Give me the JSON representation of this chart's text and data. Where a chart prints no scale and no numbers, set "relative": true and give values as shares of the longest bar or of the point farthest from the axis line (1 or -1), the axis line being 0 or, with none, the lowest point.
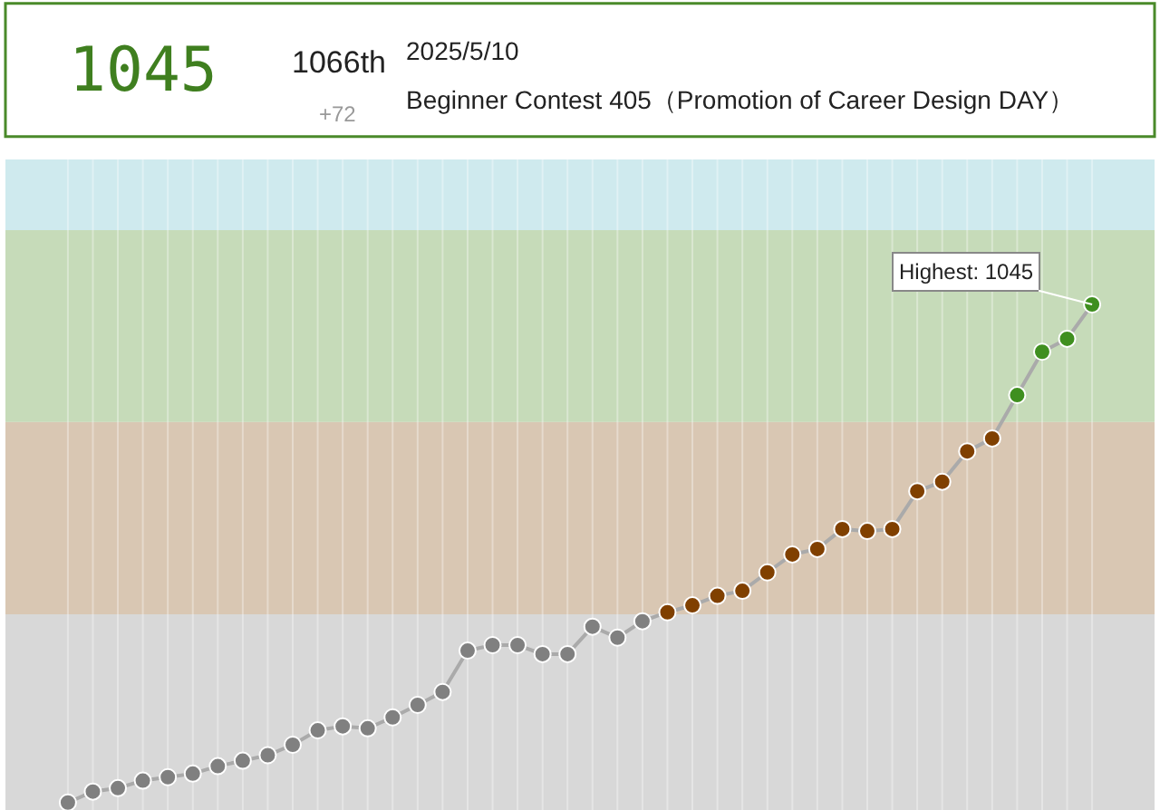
{
  "chart_data": {
    "type": "line",
    "title": "1045",
    "relative": true,
    "annotations": [
      "1066th",
      "+72",
      "2025/5/10",
      "Beginner Contest 405（Promotion of Career Design DAY）",
      "Highest: 1045"
    ],
    "categories": [
      null,
      null,
      null,
      null,
      null,
      null,
      null,
      null,
      null,
      null,
      null,
      null,
      null,
      null,
      null,
      null,
      null,
      null,
      null,
      null,
      null,
      null,
      null,
      null,
      null,
      null,
      null,
      null,
      null,
      null,
      null,
      null,
      null,
      null,
      null,
      null,
      null,
      null,
      null,
      null,
      null,
      null
    ],
    "series": [
      {
        "color": "#aaaaaa",
        "values": [
          0,
          0.022,
          0.029,
          0.044,
          0.051,
          0.058,
          0.073,
          0.084,
          0.095,
          0.116,
          0.145,
          0.153,
          0.149,
          0.171,
          0.196,
          0.222,
          0.305,
          0.316,
          0.316,
          0.298,
          0.298,
          0.353,
          0.331,
          0.364,
          0.382,
          0.396,
          0.415,
          0.425,
          0.462,
          0.498,
          0.509,
          0.549,
          0.545,
          0.549,
          0.625,
          0.644,
          0.705,
          0.731,
          0.818,
          0.905,
          0.931,
          1
        ],
        "colors": [
          "#808080",
          "#808080",
          "#808080",
          "#808080",
          "#808080",
          "#808080",
          "#808080",
          "#808080",
          "#808080",
          "#808080",
          "#808080",
          "#808080",
          "#808080",
          "#808080",
          "#808080",
          "#808080",
          "#808080",
          "#808080",
          "#808080",
          "#808080",
          "#808080",
          "#808080",
          "#808080",
          "#808080",
          "#804000",
          "#804000",
          "#804000",
          "#804000",
          "#804000",
          "#804000",
          "#804000",
          "#804000",
          "#804000",
          "#804000",
          "#804000",
          "#804000",
          "#804000",
          "#804000",
          "#3f8f1f",
          "#3f8f1f",
          "#3f8f1f",
          "#3f8f1f"
        ]
      }
    ],
    "bands": [
      {
        "axis": "y",
        "from": -0.015,
        "to": 0.378,
        "color": "#d8d8d8"
      },
      {
        "axis": "y",
        "from": 0.378,
        "to": 0.764,
        "color": "#d9c7b3"
      },
      {
        "axis": "y",
        "from": 0.764,
        "to": 1.149,
        "color": "#c6dbb9"
      },
      {
        "axis": "y",
        "from": 1.149,
        "to": 1.291,
        "color": "#cfeaee"
      }
    ],
    "grid": "x",
    "marker": "circle",
    "line_style": "solid"
  }
}
